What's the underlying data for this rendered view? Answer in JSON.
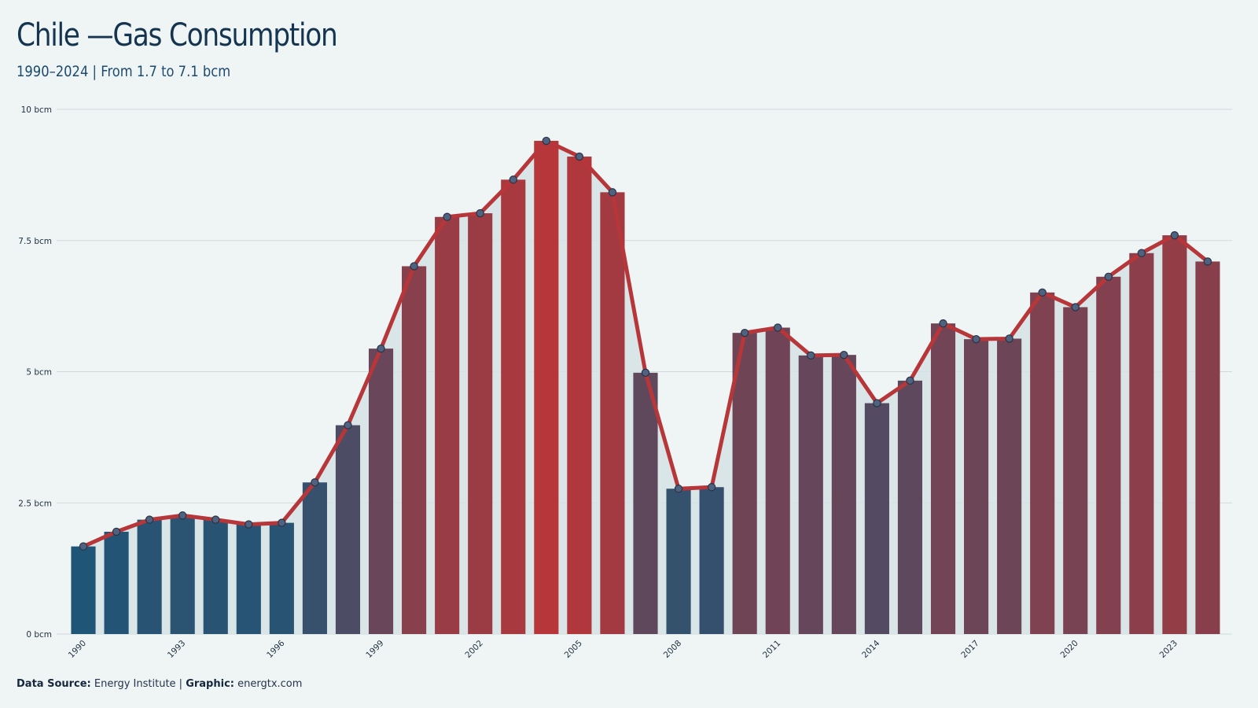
{
  "title": "Chile —Gas Consumption",
  "subtitle": "1990–2024 | From 1.7 to 7.1 bcm",
  "footer": {
    "source_label": "Data Source:",
    "source_value": "Energy Institute |",
    "graphic_label": "Graphic:",
    "graphic_value": "energtx.com"
  },
  "colors": {
    "background": "#eff5f5",
    "low": "#1f5577",
    "high": "#b63639",
    "line": "#b63639",
    "marker": "#4f6280",
    "area": "#d6e2e5",
    "grid": "#cfd9dc",
    "text": "#15344f"
  },
  "chart_data": {
    "type": "bar",
    "title": "Chile —Gas Consumption",
    "subtitle": "1990–2024 | From 1.7 to 7.1 bcm",
    "overlay": "line with markers and shaded area",
    "x": [
      1990,
      1991,
      1992,
      1993,
      1994,
      1995,
      1996,
      1997,
      1998,
      1999,
      2000,
      2001,
      2002,
      2003,
      2004,
      2005,
      2006,
      2007,
      2008,
      2009,
      2010,
      2011,
      2012,
      2013,
      2014,
      2015,
      2016,
      2017,
      2018,
      2019,
      2020,
      2021,
      2022,
      2023,
      2024
    ],
    "values": [
      1.67,
      1.95,
      2.18,
      2.26,
      2.18,
      2.09,
      2.12,
      2.89,
      3.98,
      5.44,
      7.01,
      7.95,
      8.02,
      8.66,
      9.4,
      9.1,
      8.42,
      4.98,
      2.77,
      2.8,
      5.74,
      5.84,
      5.31,
      5.32,
      4.4,
      4.83,
      5.92,
      5.62,
      5.63,
      6.51,
      6.23,
      6.81,
      7.26,
      7.6,
      7.1
    ],
    "xtick_labels": [
      "1990",
      "1993",
      "1996",
      "1999",
      "2002",
      "2005",
      "2008",
      "2011",
      "2014",
      "2017",
      "2020",
      "2023"
    ],
    "ytick_labels": [
      "0 bcm",
      "2.5 bcm",
      "5 bcm",
      "7.5 bcm",
      "10 bcm"
    ],
    "yticks": [
      0,
      2.5,
      5,
      7.5,
      10
    ],
    "ylim": [
      0,
      10
    ],
    "xlabel": "",
    "ylabel": "",
    "unit": "bcm",
    "grid": "horizontal",
    "legend": "none"
  }
}
